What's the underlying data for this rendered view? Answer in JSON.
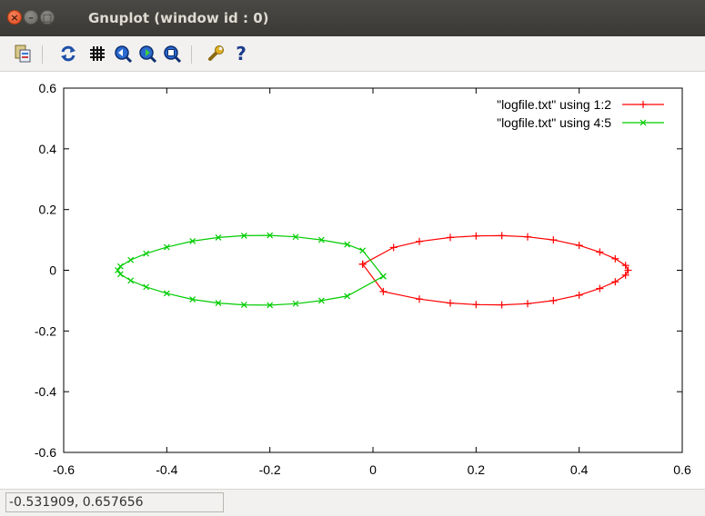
{
  "window": {
    "title": "Gnuplot (window id : 0)",
    "close_glyph": "×",
    "minimize_glyph": "–",
    "maximize_glyph": "□"
  },
  "toolbar": {
    "items": [
      {
        "icon": "copy-to-clipboard-icon"
      },
      {
        "icon": "replot-icon"
      },
      {
        "icon": "grid-icon"
      },
      {
        "icon": "zoom-previous-icon"
      },
      {
        "icon": "zoom-next-icon"
      },
      {
        "icon": "autoscale-icon"
      },
      {
        "icon": "settings-wrench-icon"
      },
      {
        "icon": "help-icon"
      }
    ],
    "help_glyph": "?"
  },
  "status": {
    "coordinates": "-0.531909,  0.657656"
  },
  "chart_data": {
    "type": "line",
    "xlim": [
      -0.6,
      0.6
    ],
    "ylim": [
      -0.6,
      0.6
    ],
    "x_ticks": [
      "-0.6",
      "-0.4",
      "-0.2",
      "0",
      "0.2",
      "0.4",
      "0.6"
    ],
    "x_tick_values": [
      -0.6,
      -0.4,
      -0.2,
      0,
      0.2,
      0.4,
      0.6
    ],
    "y_ticks": [
      "0.6",
      "0.4",
      "0.2",
      "0",
      "-0.2",
      "-0.4",
      "-0.6"
    ],
    "y_tick_values": [
      0.6,
      0.4,
      0.2,
      0,
      -0.2,
      -0.4,
      -0.6
    ],
    "legend_position": "top-right",
    "grid": false,
    "series": [
      {
        "name": "\"logfile.txt\" using 1:2",
        "color": "#ff0000",
        "marker": "+",
        "points": [
          [
            -0.02,
            0.02
          ],
          [
            0.02,
            -0.07
          ],
          [
            0.09,
            -0.095
          ],
          [
            0.15,
            -0.108
          ],
          [
            0.2,
            -0.113
          ],
          [
            0.25,
            -0.114
          ],
          [
            0.3,
            -0.11
          ],
          [
            0.35,
            -0.1
          ],
          [
            0.4,
            -0.082
          ],
          [
            0.44,
            -0.06
          ],
          [
            0.47,
            -0.038
          ],
          [
            0.49,
            -0.016
          ],
          [
            0.495,
            0.0
          ],
          [
            0.49,
            0.016
          ],
          [
            0.47,
            0.038
          ],
          [
            0.44,
            0.06
          ],
          [
            0.4,
            0.082
          ],
          [
            0.35,
            0.1
          ],
          [
            0.3,
            0.11
          ],
          [
            0.25,
            0.114
          ],
          [
            0.2,
            0.113
          ],
          [
            0.15,
            0.108
          ],
          [
            0.09,
            0.095
          ],
          [
            0.04,
            0.075
          ],
          [
            -0.02,
            0.02
          ]
        ]
      },
      {
        "name": "\"logfile.txt\" using 4:5",
        "color": "#00cc00",
        "marker": "x",
        "points": [
          [
            0.02,
            -0.02
          ],
          [
            -0.05,
            -0.085
          ],
          [
            -0.1,
            -0.1
          ],
          [
            -0.15,
            -0.11
          ],
          [
            -0.2,
            -0.115
          ],
          [
            -0.25,
            -0.114
          ],
          [
            -0.3,
            -0.108
          ],
          [
            -0.35,
            -0.096
          ],
          [
            -0.4,
            -0.076
          ],
          [
            -0.44,
            -0.055
          ],
          [
            -0.47,
            -0.034
          ],
          [
            -0.49,
            -0.013
          ],
          [
            -0.495,
            0.0
          ],
          [
            -0.49,
            0.013
          ],
          [
            -0.47,
            0.034
          ],
          [
            -0.44,
            0.055
          ],
          [
            -0.4,
            0.076
          ],
          [
            -0.35,
            0.096
          ],
          [
            -0.3,
            0.108
          ],
          [
            -0.25,
            0.114
          ],
          [
            -0.2,
            0.115
          ],
          [
            -0.15,
            0.11
          ],
          [
            -0.1,
            0.1
          ],
          [
            -0.05,
            0.085
          ],
          [
            -0.02,
            0.065
          ],
          [
            0.02,
            -0.02
          ]
        ]
      }
    ]
  }
}
